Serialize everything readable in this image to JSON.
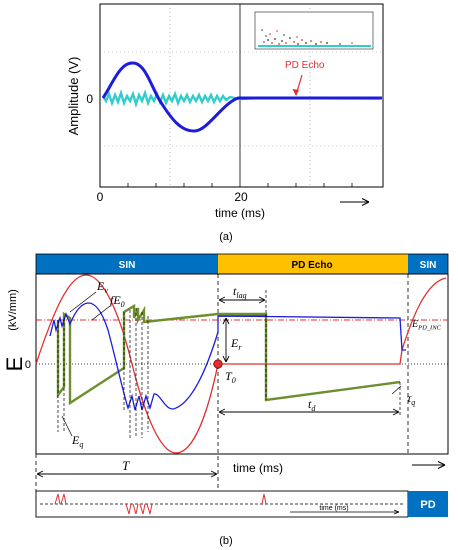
{
  "panel_a": {
    "ylabel": "Amplitude  (V)",
    "ytick_zero": "0",
    "xtick_0": "0",
    "xtick_20": "20",
    "xlabel": "time  (ms)",
    "annotation": "PD Echo",
    "caption": "(a)"
  },
  "panel_b": {
    "bar_sin_left": "SIN",
    "bar_pd_echo": "PD Echo",
    "bar_sin_right": "SIN",
    "ylabel_E": "E",
    "ylabel_unit": "(kV/mm)",
    "ytick_zero": "0",
    "label_Ev": "E",
    "label_Ev_sub": "v",
    "label_fE0": "fE",
    "label_fE0_sub": "0",
    "label_tlag": "t",
    "label_tlag_sub": "lag",
    "label_Er": "E",
    "label_Er_sub": "r",
    "label_T0": "T",
    "label_T0_sub": "0",
    "label_Eq": "E",
    "label_Eq_sub": "q",
    "label_td": "t",
    "label_td_sub": "d",
    "label_tauq": "τ",
    "label_tauq_sub": "q",
    "label_EPD": "E",
    "label_EPD_sub": "PD_INC",
    "label_T": "T",
    "xlabel": "time  (ms)",
    "pd_box": "PD",
    "pd_time": "time (ms)",
    "caption": "(b)"
  },
  "colors": {
    "bar_blue": "#0070c0",
    "bar_orange": "#ffc000",
    "trace_blue": "#1c1cdc",
    "trace_cyan": "#33cccc",
    "red": "#e03030",
    "green": "#6e8f2e"
  }
}
